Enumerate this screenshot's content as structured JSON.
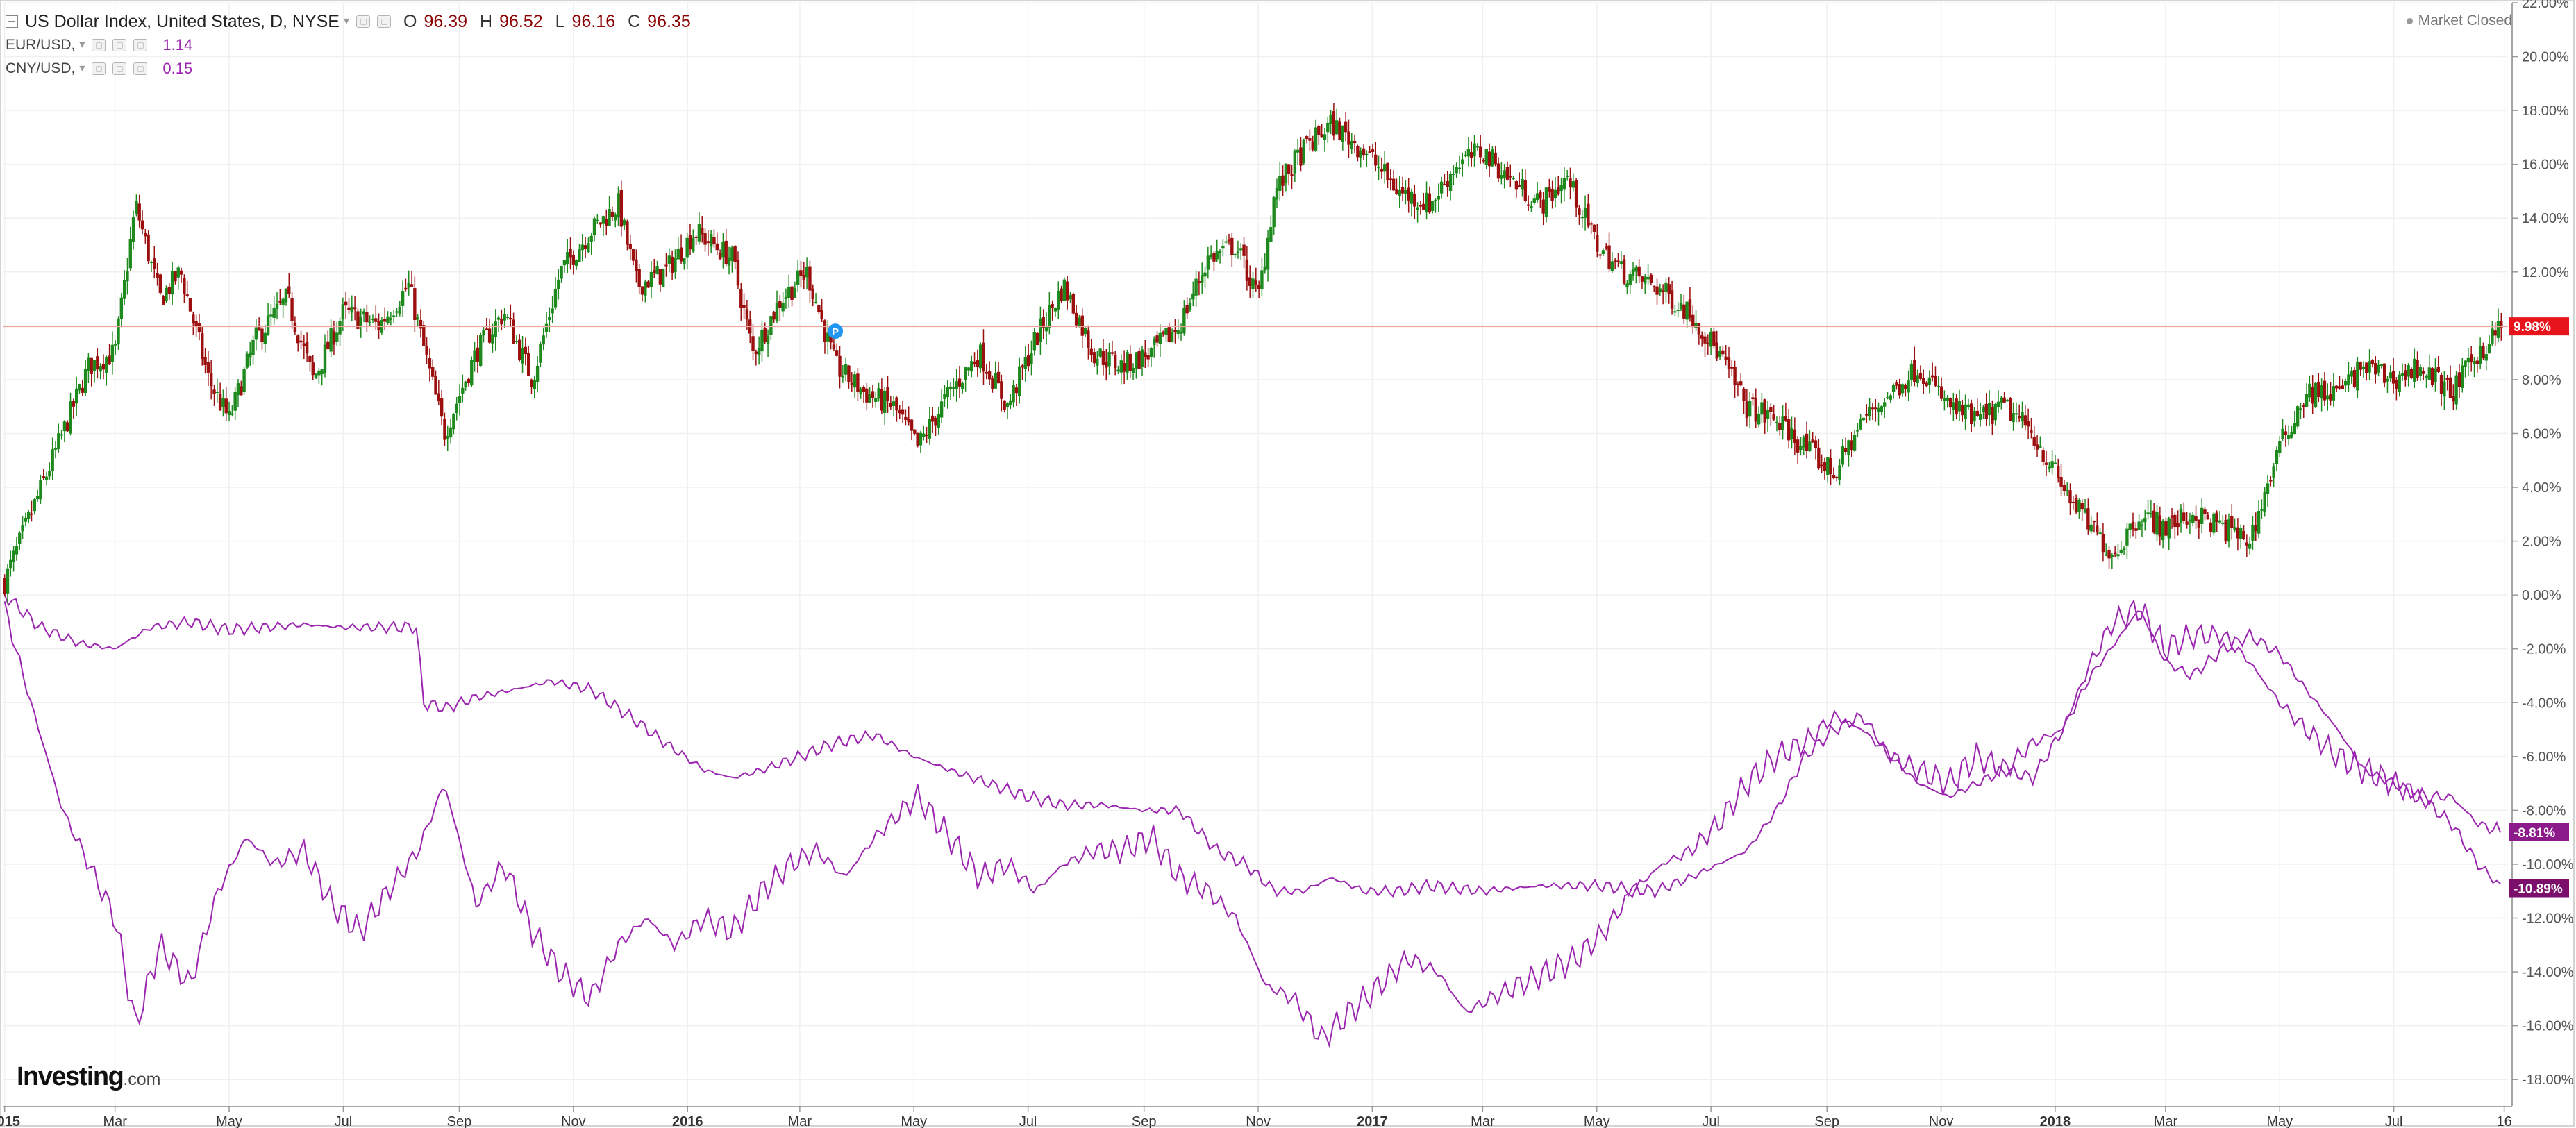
{
  "header": {
    "main_series": "US Dollar Index, United States, D, NYSE",
    "ohlc": [
      {
        "key": "O",
        "value": "96.39"
      },
      {
        "key": "H",
        "value": "96.52"
      },
      {
        "key": "L",
        "value": "96.16"
      },
      {
        "key": "C",
        "value": "96.35"
      }
    ],
    "sub_series": [
      {
        "name": "EUR/USD, ",
        "value": "1.14"
      },
      {
        "name": "CNY/USD, ",
        "value": "0.15"
      }
    ],
    "market_status": "Market Closed"
  },
  "logo": {
    "name": "Investing",
    "suffix": ".com"
  },
  "colors": {
    "up": "#1e8a1e",
    "down": "#9b0f0f",
    "series_line": "#9b26af",
    "last_price_line": "#f2a49e",
    "last_price_badge": "#e8141c",
    "eur_badge": "#8b1a8b",
    "cny_badge": "#7b0f6b",
    "grid": "#f0f0f0",
    "axis": "#555555",
    "marker": "#2196f3"
  },
  "chart_data": {
    "type": "line",
    "chart_style": "candlestick + line comparison",
    "title": "US Dollar Index, United States, D, NYSE",
    "y_axis": {
      "label": "",
      "unit": "%",
      "position": "right",
      "range": [
        -19,
        22
      ],
      "ticks": [
        "22.00%",
        "20.00%",
        "18.00%",
        "16.00%",
        "14.00%",
        "12.00%",
        "10.00%",
        "8.00%",
        "6.00%",
        "4.00%",
        "2.00%",
        "0.00%",
        "-2.00%",
        "-4.00%",
        "-6.00%",
        "-8.00%",
        "-10.00%",
        "-12.00%",
        "-14.00%",
        "-16.00%",
        "-18.00%"
      ],
      "tick_values": [
        22,
        20,
        18,
        16,
        14,
        12,
        10,
        8,
        6,
        4,
        2,
        0,
        -2,
        -4,
        -6,
        -8,
        -10,
        -12,
        -14,
        -16,
        -18
      ]
    },
    "x_axis": {
      "label": "",
      "range": [
        "2014-12-31",
        "2018-08-31"
      ],
      "ticks": [
        {
          "date": "2015-01-01",
          "label": "2015",
          "bold": true
        },
        {
          "date": "2015-03-01",
          "label": "Mar",
          "bold": false
        },
        {
          "date": "2015-05-01",
          "label": "May",
          "bold": false
        },
        {
          "date": "2015-07-01",
          "label": "Jul",
          "bold": false
        },
        {
          "date": "2015-09-01",
          "label": "Sep",
          "bold": false
        },
        {
          "date": "2015-11-01",
          "label": "Nov",
          "bold": false
        },
        {
          "date": "2016-01-01",
          "label": "2016",
          "bold": true
        },
        {
          "date": "2016-03-01",
          "label": "Mar",
          "bold": false
        },
        {
          "date": "2016-05-01",
          "label": "May",
          "bold": false
        },
        {
          "date": "2016-07-01",
          "label": "Jul",
          "bold": false
        },
        {
          "date": "2016-09-01",
          "label": "Sep",
          "bold": false
        },
        {
          "date": "2016-11-01",
          "label": "Nov",
          "bold": false
        },
        {
          "date": "2017-01-01",
          "label": "2017",
          "bold": true
        },
        {
          "date": "2017-03-01",
          "label": "Mar",
          "bold": false
        },
        {
          "date": "2017-05-01",
          "label": "May",
          "bold": false
        },
        {
          "date": "2017-07-01",
          "label": "Jul",
          "bold": false
        },
        {
          "date": "2017-09-01",
          "label": "Sep",
          "bold": false
        },
        {
          "date": "2017-11-01",
          "label": "Nov",
          "bold": false
        },
        {
          "date": "2018-01-01",
          "label": "2018",
          "bold": true
        },
        {
          "date": "2018-03-01",
          "label": "Mar",
          "bold": false
        },
        {
          "date": "2018-05-01",
          "label": "May",
          "bold": false
        },
        {
          "date": "2018-07-01",
          "label": "Jul",
          "bold": false
        },
        {
          "date": "2018-08-29",
          "label": "16",
          "bold": false
        }
      ]
    },
    "grid": true,
    "series": [
      {
        "name": "US Dollar Index",
        "kind": "candlestick",
        "x": [
          "2015-01-01",
          "2015-01-15",
          "2015-02-01",
          "2015-02-15",
          "2015-03-01",
          "2015-03-12",
          "2015-03-25",
          "2015-04-05",
          "2015-04-20",
          "2015-05-01",
          "2015-05-15",
          "2015-06-01",
          "2015-06-15",
          "2015-07-01",
          "2015-07-20",
          "2015-08-05",
          "2015-08-24",
          "2015-09-10",
          "2015-09-25",
          "2015-10-10",
          "2015-10-25",
          "2015-11-10",
          "2015-11-25",
          "2015-12-05",
          "2015-12-20",
          "2016-01-05",
          "2016-01-25",
          "2016-02-05",
          "2016-02-20",
          "2016-03-05",
          "2016-03-20",
          "2016-04-05",
          "2016-04-20",
          "2016-05-03",
          "2016-05-20",
          "2016-06-05",
          "2016-06-20",
          "2016-07-05",
          "2016-07-20",
          "2016-08-05",
          "2016-08-20",
          "2016-09-05",
          "2016-09-20",
          "2016-10-05",
          "2016-10-20",
          "2016-11-01",
          "2016-11-10",
          "2016-11-25",
          "2016-12-10",
          "2016-12-28",
          "2017-01-15",
          "2017-02-01",
          "2017-02-15",
          "2017-03-01",
          "2017-03-15",
          "2017-04-01",
          "2017-04-15",
          "2017-05-01",
          "2017-05-15",
          "2017-06-01",
          "2017-06-20",
          "2017-07-05",
          "2017-07-20",
          "2017-08-05",
          "2017-08-20",
          "2017-09-05",
          "2017-09-20",
          "2017-10-05",
          "2017-10-20",
          "2017-11-05",
          "2017-11-20",
          "2017-12-05",
          "2017-12-20",
          "2018-01-05",
          "2018-01-20",
          "2018-02-01",
          "2018-02-15",
          "2018-03-01",
          "2018-03-15",
          "2018-04-01",
          "2018-04-15",
          "2018-05-01",
          "2018-05-15",
          "2018-06-01",
          "2018-06-15",
          "2018-07-01",
          "2018-07-15",
          "2018-08-01",
          "2018-08-15",
          "2018-08-28"
        ],
        "y": [
          0.5,
          3,
          6,
          8.5,
          9,
          14.5,
          11,
          12,
          8,
          6.5,
          9.5,
          11,
          8,
          10.5,
          10,
          11.5,
          6,
          9,
          10.5,
          8,
          12,
          13.5,
          14.5,
          11.5,
          12,
          13.5,
          12.5,
          9,
          11,
          12,
          8.5,
          7.5,
          7,
          5.5,
          7.5,
          9,
          7,
          9.5,
          11.5,
          9,
          8.5,
          9,
          10,
          12.5,
          13,
          11,
          15,
          16.5,
          17.5,
          16.5,
          15,
          14.5,
          16,
          16.5,
          15.5,
          14.5,
          15.5,
          13,
          12,
          11.5,
          10.5,
          9,
          7,
          6.5,
          5.5,
          4.5,
          6.5,
          7.5,
          8.5,
          7,
          6.5,
          7,
          6,
          4,
          2.5,
          1.5,
          3,
          2.5,
          3,
          2.5,
          2,
          5.5,
          7.5,
          7.5,
          8.5,
          8,
          8.5,
          7.5,
          9,
          10
        ]
      },
      {
        "name": "EUR/USD",
        "kind": "line",
        "x": [
          "2015-01-01",
          "2015-01-15",
          "2015-02-01",
          "2015-02-15",
          "2015-03-01",
          "2015-03-12",
          "2015-03-25",
          "2015-04-10",
          "2015-04-25",
          "2015-05-10",
          "2015-05-25",
          "2015-06-10",
          "2015-06-25",
          "2015-07-10",
          "2015-07-25",
          "2015-08-10",
          "2015-08-24",
          "2015-09-10",
          "2015-09-25",
          "2015-10-10",
          "2015-10-25",
          "2015-11-10",
          "2015-11-25",
          "2015-12-10",
          "2015-12-25",
          "2016-01-10",
          "2016-01-25",
          "2016-02-10",
          "2016-02-25",
          "2016-03-10",
          "2016-03-25",
          "2016-04-10",
          "2016-04-25",
          "2016-05-03",
          "2016-05-20",
          "2016-06-05",
          "2016-06-20",
          "2016-07-05",
          "2016-07-20",
          "2016-08-05",
          "2016-08-20",
          "2016-09-05",
          "2016-09-20",
          "2016-10-05",
          "2016-10-20",
          "2016-11-05",
          "2016-11-20",
          "2016-12-05",
          "2016-12-20",
          "2017-01-05",
          "2017-01-20",
          "2017-02-05",
          "2017-02-20",
          "2017-03-05",
          "2017-03-20",
          "2017-04-05",
          "2017-04-20",
          "2017-05-05",
          "2017-05-20",
          "2017-06-05",
          "2017-06-20",
          "2017-07-05",
          "2017-07-20",
          "2017-08-05",
          "2017-08-20",
          "2017-09-05",
          "2017-09-20",
          "2017-10-05",
          "2017-10-20",
          "2017-11-05",
          "2017-11-20",
          "2017-12-05",
          "2017-12-20",
          "2018-01-05",
          "2018-01-20",
          "2018-02-01",
          "2018-02-15",
          "2018-03-01",
          "2018-03-15",
          "2018-04-01",
          "2018-04-15",
          "2018-05-01",
          "2018-05-15",
          "2018-06-01",
          "2018-06-15",
          "2018-07-01",
          "2018-07-15",
          "2018-08-01",
          "2018-08-15",
          "2018-08-28"
        ],
        "y": [
          -0.5,
          -4,
          -8,
          -10,
          -12,
          -16,
          -13,
          -14.5,
          -11,
          -9,
          -10,
          -9.5,
          -11.5,
          -12.5,
          -11,
          -9.5,
          -7,
          -11.5,
          -10,
          -12.5,
          -14,
          -15,
          -13,
          -12,
          -13,
          -12,
          -12.5,
          -11,
          -10,
          -9.5,
          -10.5,
          -9,
          -8,
          -7.5,
          -9,
          -10.5,
          -10,
          -11,
          -10,
          -9.5,
          -9.5,
          -9,
          -10.5,
          -11,
          -12,
          -14.5,
          -15,
          -16.5,
          -15.5,
          -14.5,
          -13.5,
          -14,
          -15.5,
          -15,
          -14.5,
          -14,
          -13.5,
          -12.5,
          -11,
          -10,
          -9.5,
          -8.5,
          -7,
          -6,
          -5.5,
          -4.5,
          -5,
          -6,
          -6.5,
          -7,
          -6,
          -6.5,
          -5.5,
          -5,
          -2.5,
          -1,
          -0.5,
          -2,
          -1.5,
          -1.5,
          -2.5,
          -4,
          -5,
          -6,
          -6.5,
          -7,
          -7.5,
          -7.5,
          -8.5,
          -8.81
        ]
      },
      {
        "name": "CNY/USD",
        "kind": "line",
        "x": [
          "2015-01-01",
          "2015-01-20",
          "2015-02-10",
          "2015-03-01",
          "2015-03-20",
          "2015-04-10",
          "2015-05-01",
          "2015-05-20",
          "2015-06-10",
          "2015-07-01",
          "2015-07-20",
          "2015-08-10",
          "2015-08-12",
          "2015-08-25",
          "2015-09-10",
          "2015-10-01",
          "2015-10-20",
          "2015-11-10",
          "2015-12-01",
          "2015-12-20",
          "2016-01-10",
          "2016-01-25",
          "2016-02-10",
          "2016-03-01",
          "2016-03-20",
          "2016-04-10",
          "2016-05-01",
          "2016-05-20",
          "2016-06-10",
          "2016-07-01",
          "2016-07-20",
          "2016-08-10",
          "2016-09-01",
          "2016-09-20",
          "2016-10-10",
          "2016-10-25",
          "2016-11-10",
          "2016-11-25",
          "2016-12-10",
          "2016-12-28",
          "2017-01-15",
          "2017-02-01",
          "2017-03-01",
          "2017-04-01",
          "2017-05-01",
          "2017-06-01",
          "2017-06-20",
          "2017-07-05",
          "2017-07-20",
          "2017-08-05",
          "2017-08-20",
          "2017-09-05",
          "2017-09-20",
          "2017-10-05",
          "2017-10-20",
          "2017-11-05",
          "2017-11-20",
          "2017-12-05",
          "2017-12-20",
          "2018-01-05",
          "2018-01-20",
          "2018-02-05",
          "2018-02-15",
          "2018-03-01",
          "2018-03-15",
          "2018-04-01",
          "2018-04-15",
          "2018-05-01",
          "2018-05-15",
          "2018-06-01",
          "2018-06-15",
          "2018-07-01",
          "2018-07-15",
          "2018-08-01",
          "2018-08-15",
          "2018-08-28"
        ],
        "y": [
          0,
          -1.2,
          -1.8,
          -2,
          -1.2,
          -1,
          -1.3,
          -1.2,
          -1.1,
          -1.2,
          -1.2,
          -1.2,
          -4,
          -4.2,
          -3.8,
          -3.5,
          -3.2,
          -3.5,
          -4.5,
          -5.5,
          -6.5,
          -6.8,
          -6.5,
          -6,
          -5.5,
          -5.2,
          -6,
          -6.5,
          -7,
          -7.5,
          -7.8,
          -7.8,
          -8,
          -8,
          -9.5,
          -10,
          -11,
          -11,
          -10.5,
          -11,
          -11,
          -10.8,
          -11,
          -10.8,
          -10.8,
          -11,
          -10.5,
          -10,
          -9.5,
          -8,
          -6,
          -5,
          -4.5,
          -6,
          -7,
          -7.5,
          -7,
          -6.5,
          -6.8,
          -5,
          -3,
          -1.5,
          -0.5,
          -2.5,
          -3,
          -2,
          -1.5,
          -2.2,
          -3.5,
          -5,
          -6.5,
          -7,
          -7.5,
          -8.5,
          -10,
          -10.89
        ]
      }
    ],
    "last_values": {
      "main": {
        "value": 9.98,
        "label": "9.98%"
      },
      "eur": {
        "value": -8.81,
        "label": "-8.81%"
      },
      "cny": {
        "value": -10.89,
        "label": "-10.89%"
      }
    },
    "annotations": [
      {
        "date": "2016-03-20",
        "value": 9.8,
        "label": "P"
      }
    ]
  }
}
